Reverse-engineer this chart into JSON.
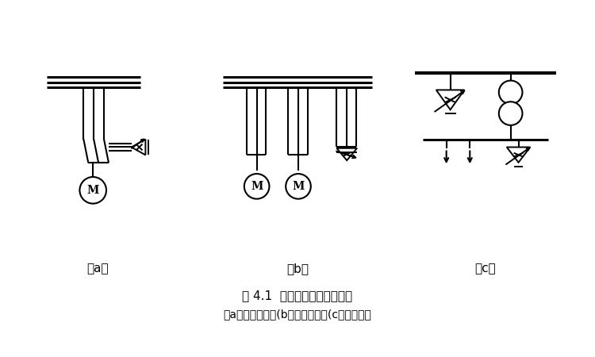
{
  "title_line1": "图 4.1  并联电容器的补偿方式",
  "title_line2": "（a）个别补偿；(b）分组补偿；(c）集中补偿",
  "label_a": "（a）",
  "label_b": "（b）",
  "label_c": "（c）",
  "bg_color": "#ffffff",
  "line_color": "#000000",
  "figure_width": 7.5,
  "figure_height": 4.5,
  "dpi": 100,
  "bus_lw": 2.2,
  "wire_lw": 1.5,
  "symbol_lw": 1.4
}
